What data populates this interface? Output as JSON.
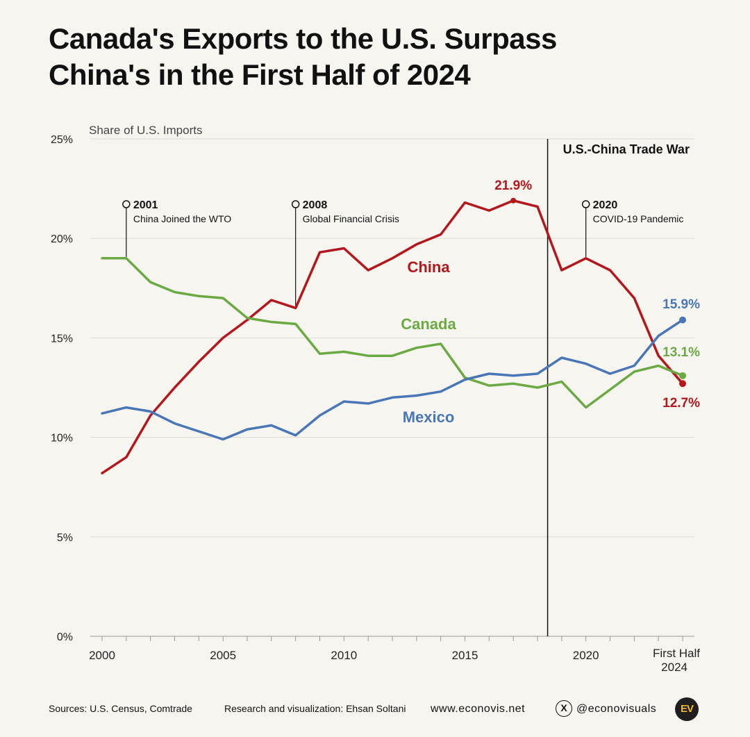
{
  "title_line1": "Canada's Exports to the U.S. Surpass",
  "title_line2": "China's in the First Half of 2024",
  "footer": {
    "sources": "Sources: U.S. Census, Comtrade",
    "credit": "Research and visualization: Ehsan Soltani",
    "website": "www.econovis.net",
    "x_icon": "x-logo-icon",
    "handle": "@econovisuals",
    "logo_text": "EV"
  },
  "chart_data": {
    "type": "line",
    "ylabel": "Share of U.S. Imports",
    "ylim": [
      0,
      25
    ],
    "yticks": [
      "0%",
      "5%",
      "10%",
      "15%",
      "20%",
      "25%"
    ],
    "xticks": [
      "2000",
      "2005",
      "2010",
      "2015",
      "2020"
    ],
    "xtick_last": [
      "First Half",
      "2024"
    ],
    "x": [
      2000,
      2001,
      2002,
      2003,
      2004,
      2005,
      2006,
      2007,
      2008,
      2009,
      2010,
      2011,
      2012,
      2013,
      2014,
      2015,
      2016,
      2017,
      2018,
      2019,
      2020,
      2021,
      2022,
      2023,
      2024
    ],
    "grid": true,
    "series": [
      {
        "name": "China",
        "color": "#b5161b",
        "values": [
          8.2,
          9.0,
          11.1,
          12.5,
          13.8,
          15.0,
          15.9,
          16.9,
          16.5,
          19.3,
          19.5,
          18.4,
          19.0,
          19.7,
          20.2,
          21.8,
          21.4,
          21.9,
          21.6,
          18.4,
          19.0,
          18.4,
          17.0,
          14.1,
          12.7
        ],
        "end_label": "12.7%",
        "peak_label": "21.9%",
        "peak_index": 17
      },
      {
        "name": "Canada",
        "color": "#6aaa42",
        "values": [
          19.0,
          19.0,
          17.8,
          17.3,
          17.1,
          17.0,
          16.0,
          15.8,
          15.7,
          14.2,
          14.3,
          14.1,
          14.1,
          14.5,
          14.7,
          13.0,
          12.6,
          12.7,
          12.5,
          12.8,
          11.5,
          12.4,
          13.3,
          13.6,
          13.1
        ],
        "end_label": "13.1%"
      },
      {
        "name": "Mexico",
        "color": "#4876b6",
        "values": [
          11.2,
          11.5,
          11.3,
          10.7,
          10.3,
          9.9,
          10.4,
          10.6,
          10.1,
          11.1,
          11.8,
          11.7,
          12.0,
          12.1,
          12.3,
          12.9,
          13.2,
          13.1,
          13.2,
          14.0,
          13.7,
          13.2,
          13.6,
          15.1,
          15.9
        ],
        "end_label": "15.9%"
      }
    ],
    "annotations": [
      {
        "index": 1,
        "year": "2001",
        "text": "China Joined the WTO"
      },
      {
        "index": 8,
        "year": "2008",
        "text": "Global Financial Crisis"
      },
      {
        "index": 20,
        "year": "2020",
        "text": "COVID-19 Pandemic"
      }
    ],
    "period": {
      "start_index": 18,
      "label": "U.S.-China Trade War"
    }
  }
}
